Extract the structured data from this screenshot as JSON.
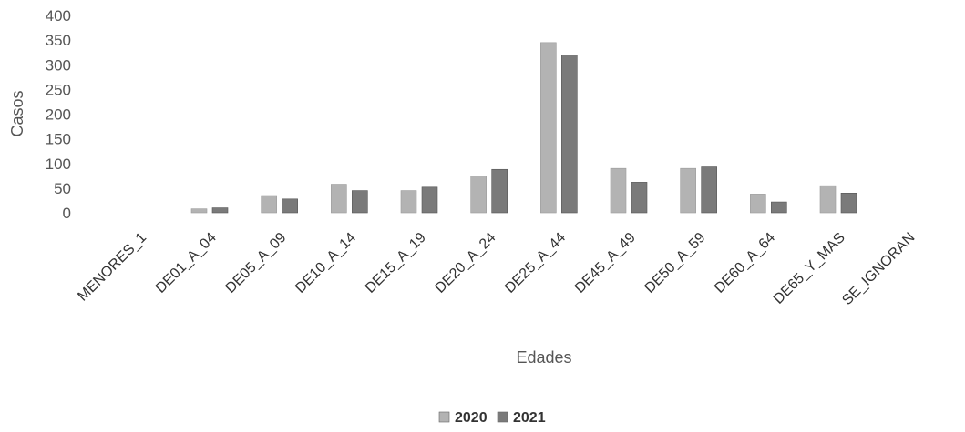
{
  "chart_data": {
    "type": "bar",
    "title": "",
    "xlabel": "Edades",
    "ylabel": "Casos",
    "ylim": [
      0,
      400
    ],
    "yticks": [
      0,
      50,
      100,
      150,
      200,
      250,
      300,
      350,
      400
    ],
    "grid": false,
    "legend_position": "bottom",
    "categories": [
      "MENORES_1",
      "DE01_A_04",
      "DE05_A_09",
      "DE10_A_14",
      "DE15_A_19",
      "DE20_A_24",
      "DE25_A_44",
      "DE45_A_49",
      "DE50_A_59",
      "DE60_A_64",
      "DE65_Y_MAS",
      "SE_IGNORAN"
    ],
    "series": [
      {
        "name": "2020",
        "color": "#b3b3b3",
        "values": [
          0,
          8,
          35,
          58,
          45,
          75,
          345,
          90,
          90,
          38,
          55,
          0
        ]
      },
      {
        "name": "2021",
        "color": "#7a7a7a",
        "values": [
          0,
          10,
          28,
          45,
          52,
          88,
          320,
          62,
          93,
          22,
          40,
          0
        ]
      }
    ]
  }
}
